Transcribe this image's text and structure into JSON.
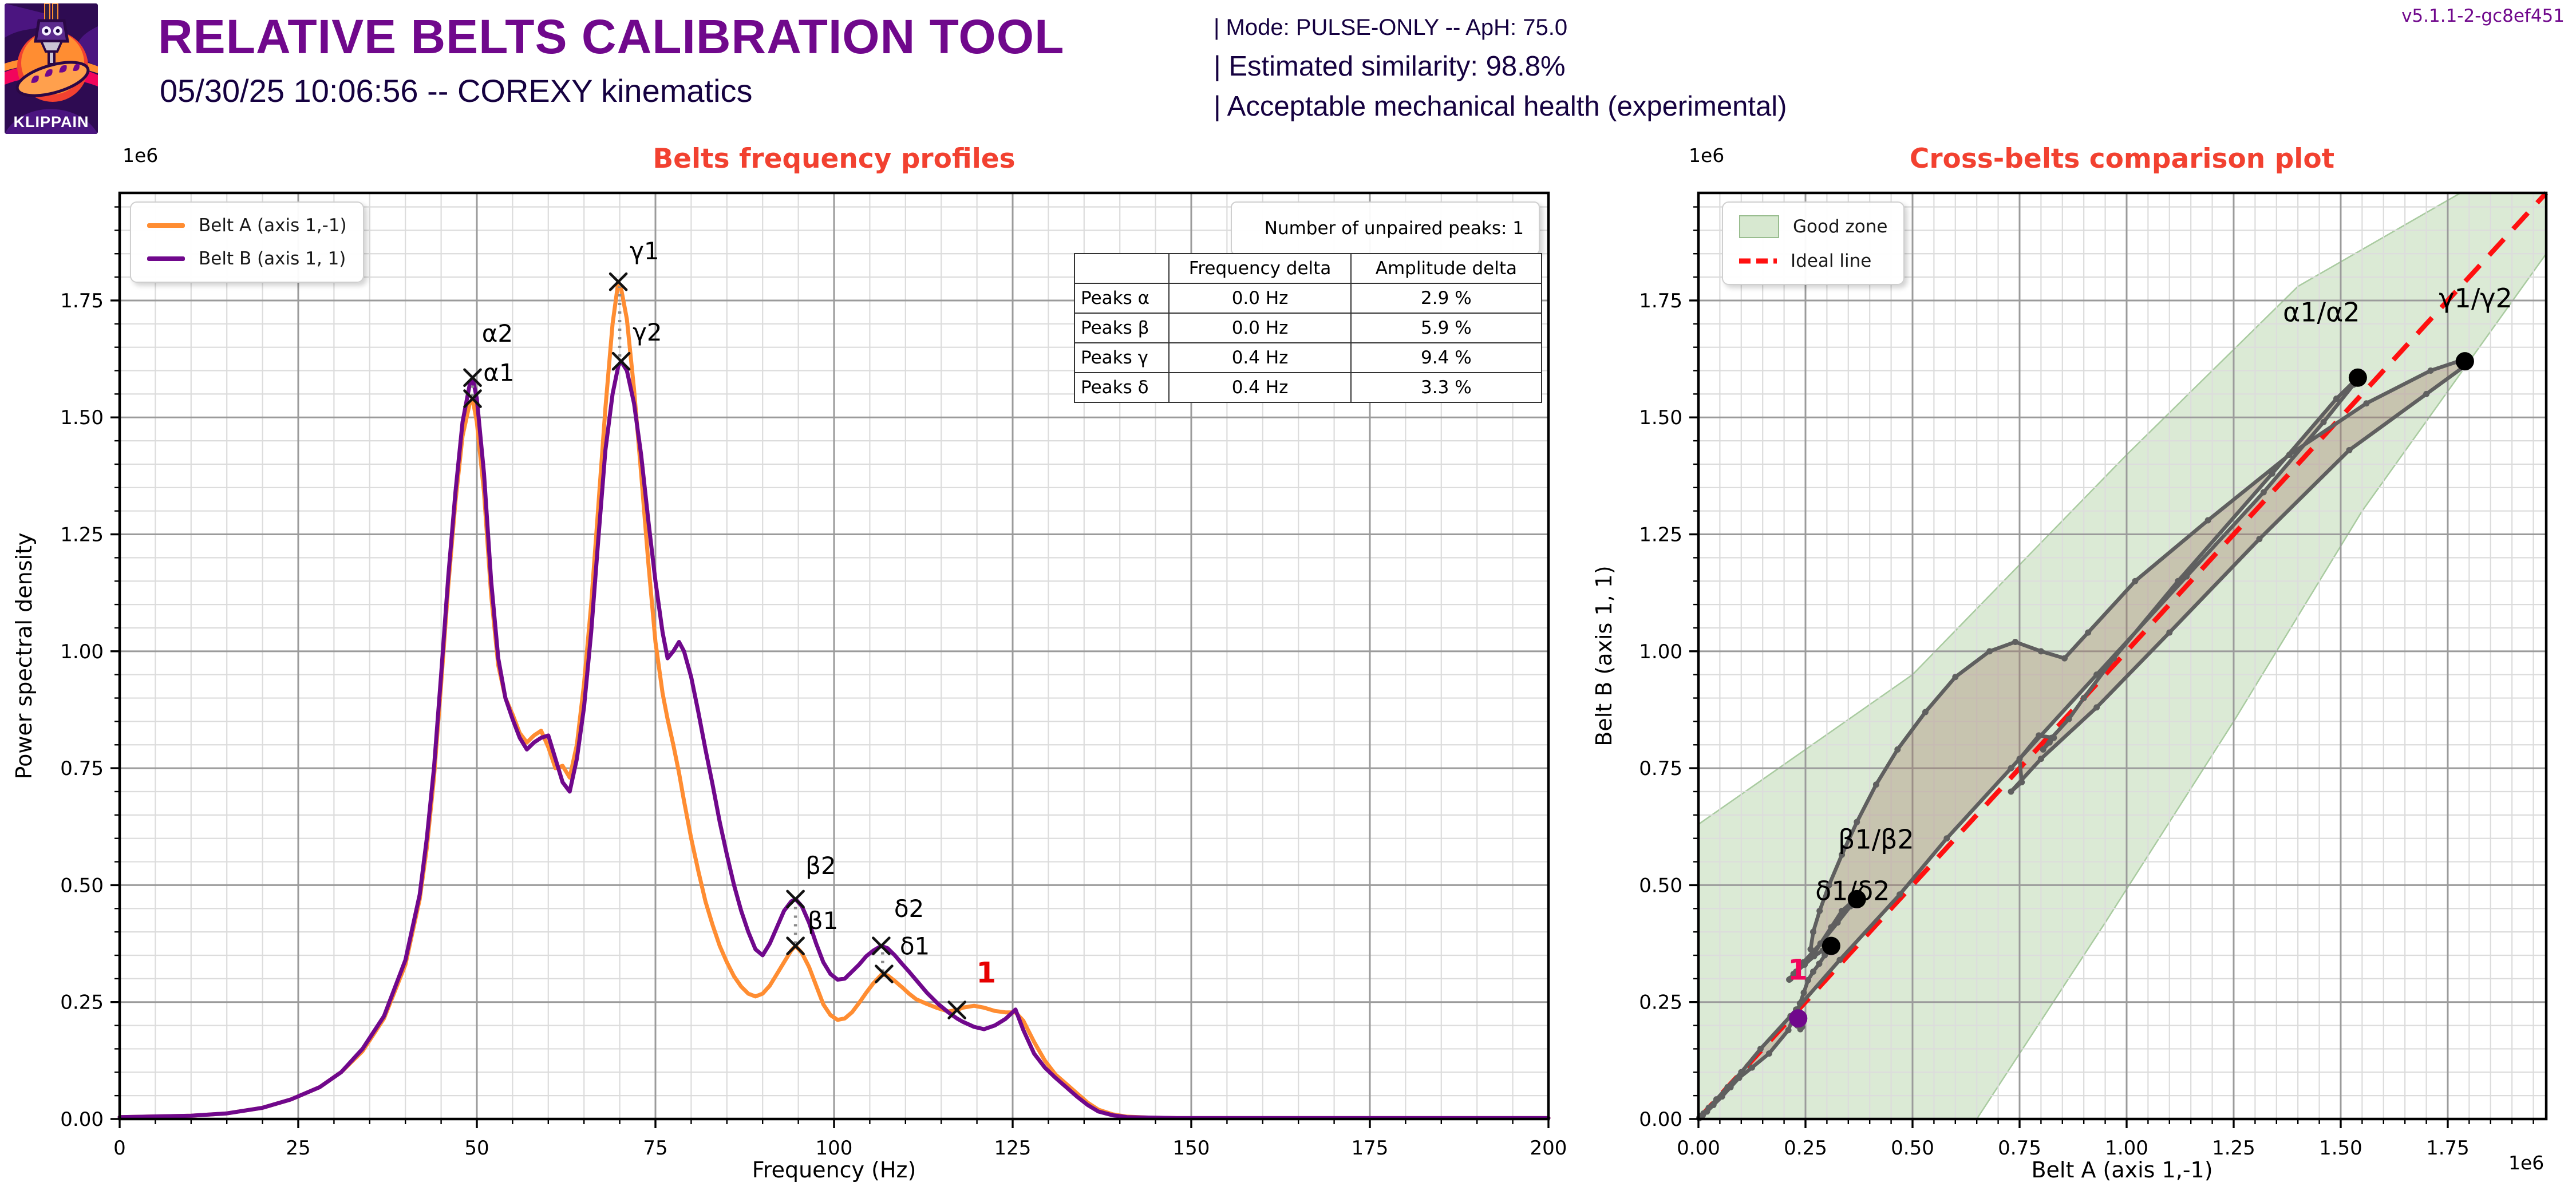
{
  "app": {
    "logo_text": "KLIPPAIN",
    "title": "RELATIVE BELTS CALIBRATION TOOL",
    "subtitle": "05/30/25 10:06:56 -- COREXY kinematics",
    "info_lines": [
      "| Mode: PULSE-ONLY -- ApH: 75.0",
      "| Estimated similarity: 98.8%",
      "| Acceptable mechanical health (experimental)"
    ],
    "version": "v5.1.1-2-gc8ef451"
  },
  "colors": {
    "title_purple": "#70088C",
    "dark_purple": "#150140",
    "chart_title_red": "#F24130",
    "belt_a_orange": "#FF8D32",
    "belt_b_purple": "#70088C",
    "unpaired_red": "#E60000",
    "unpaired_pink": "#F2055C",
    "cross_curve_gray": "#5F5F5F",
    "good_zone_green": "#D7E8D0",
    "ideal_line_red": "#FF1010",
    "grid_major": "#9B9B9B",
    "grid_minor": "#DCDCDC"
  },
  "chart_data": [
    {
      "id": "psd",
      "type": "line",
      "title": "Belts frequency profiles",
      "xlabel": "Frequency (Hz)",
      "ylabel": "Power spectral density",
      "scale_label": "1e6",
      "xlim": [
        0,
        200
      ],
      "ylim_1e6": [
        0,
        1.98
      ],
      "xticks": [
        0,
        25,
        50,
        75,
        100,
        125,
        150,
        175,
        200
      ],
      "yticks": [
        "0.00",
        "0.25",
        "0.50",
        "0.75",
        "1.00",
        "1.25",
        "1.50",
        "1.75"
      ],
      "x_minor_step": 5,
      "y_minor_step_1e6": 0.05,
      "grid": "both",
      "legend_position": "upper-left",
      "legend": [
        {
          "label": "Belt A (axis 1,-1)",
          "color": "#FF8D32"
        },
        {
          "label": "Belt B (axis 1, 1)",
          "color": "#70088C"
        }
      ],
      "unpaired_box_label": "Number of unpaired peaks: 1",
      "table": {
        "headers": [
          "",
          "Frequency delta",
          "Amplitude delta"
        ],
        "rows": [
          [
            "Peaks α",
            "0.0 Hz",
            "2.9 %"
          ],
          [
            "Peaks β",
            "0.0 Hz",
            "5.9 %"
          ],
          [
            "Peaks γ",
            "0.4 Hz",
            "9.4 %"
          ],
          [
            "Peaks δ",
            "0.4 Hz",
            "3.3 %"
          ]
        ]
      },
      "f": [
        0,
        10,
        15,
        20,
        24,
        28,
        31,
        34,
        37,
        40,
        42,
        43,
        44,
        45,
        46,
        47,
        48,
        49,
        49.4,
        50,
        51,
        52,
        53,
        54,
        55,
        56,
        57,
        58,
        59,
        60,
        61,
        62,
        63,
        64,
        65,
        66,
        67,
        68,
        69,
        69.8,
        70.2,
        71,
        72,
        73,
        74,
        75,
        76,
        76.7,
        77.5,
        78.3,
        79,
        80,
        81,
        82,
        83,
        84,
        85,
        86,
        87,
        88,
        89,
        90,
        91,
        92,
        93,
        94,
        94.6,
        95.5,
        96.5,
        97.5,
        98.5,
        99.5,
        100.5,
        101.5,
        102.5,
        103.5,
        104.5,
        105.5,
        106.6,
        107.5,
        108.5,
        109.5,
        110.5,
        111.5,
        113,
        114.5,
        116,
        117.2,
        118,
        119.6,
        121,
        122.5,
        124,
        125.4,
        126.5,
        128,
        129.5,
        131,
        132.5,
        134,
        135.5,
        137,
        139,
        141,
        144,
        148,
        155,
        165,
        180,
        200
      ],
      "series": [
        {
          "name": "Belt A (axis 1,-1)",
          "color": "#FF8D32",
          "values_1e6": [
            0.004,
            0.007,
            0.012,
            0.024,
            0.042,
            0.068,
            0.1,
            0.145,
            0.215,
            0.33,
            0.47,
            0.58,
            0.73,
            0.93,
            1.14,
            1.32,
            1.46,
            1.53,
            1.54,
            1.49,
            1.34,
            1.12,
            0.97,
            0.9,
            0.865,
            0.825,
            0.805,
            0.82,
            0.83,
            0.795,
            0.75,
            0.755,
            0.73,
            0.8,
            0.93,
            1.1,
            1.31,
            1.52,
            1.7,
            1.79,
            1.775,
            1.71,
            1.56,
            1.38,
            1.19,
            1.02,
            0.91,
            0.855,
            0.8,
            0.74,
            0.68,
            0.6,
            0.53,
            0.465,
            0.415,
            0.37,
            0.335,
            0.305,
            0.283,
            0.268,
            0.262,
            0.268,
            0.285,
            0.31,
            0.335,
            0.36,
            0.37,
            0.355,
            0.325,
            0.285,
            0.245,
            0.222,
            0.212,
            0.215,
            0.228,
            0.248,
            0.27,
            0.29,
            0.308,
            0.307,
            0.295,
            0.282,
            0.268,
            0.256,
            0.246,
            0.237,
            0.23,
            0.233,
            0.238,
            0.242,
            0.238,
            0.231,
            0.228,
            0.228,
            0.21,
            0.165,
            0.125,
            0.095,
            0.075,
            0.055,
            0.035,
            0.02,
            0.01,
            0.005,
            0.003,
            0.002,
            0.002,
            0.002,
            0.002,
            0.002
          ]
        },
        {
          "name": "Belt B (axis 1, 1)",
          "color": "#70088C",
          "values_1e6": [
            0.004,
            0.007,
            0.012,
            0.024,
            0.042,
            0.068,
            0.1,
            0.15,
            0.22,
            0.34,
            0.48,
            0.6,
            0.75,
            0.95,
            1.16,
            1.34,
            1.49,
            1.57,
            1.585,
            1.54,
            1.38,
            1.15,
            0.985,
            0.9,
            0.855,
            0.815,
            0.79,
            0.805,
            0.815,
            0.82,
            0.77,
            0.72,
            0.7,
            0.77,
            0.88,
            1.04,
            1.24,
            1.43,
            1.55,
            1.61,
            1.62,
            1.6,
            1.53,
            1.42,
            1.28,
            1.15,
            1.04,
            0.985,
            1.0,
            1.02,
            1.0,
            0.945,
            0.87,
            0.79,
            0.715,
            0.635,
            0.565,
            0.5,
            0.445,
            0.4,
            0.363,
            0.35,
            0.375,
            0.41,
            0.445,
            0.465,
            0.47,
            0.455,
            0.42,
            0.375,
            0.335,
            0.31,
            0.298,
            0.3,
            0.315,
            0.33,
            0.348,
            0.36,
            0.37,
            0.365,
            0.35,
            0.332,
            0.315,
            0.297,
            0.27,
            0.247,
            0.228,
            0.215,
            0.208,
            0.197,
            0.192,
            0.2,
            0.214,
            0.234,
            0.19,
            0.14,
            0.11,
            0.088,
            0.068,
            0.048,
            0.03,
            0.016,
            0.008,
            0.004,
            0.003,
            0.002,
            0.002,
            0.002,
            0.002,
            0.002
          ]
        }
      ],
      "peak_markers": [
        {
          "label": "α1",
          "f": 49.4,
          "v": 1.54,
          "lf": 50.9,
          "lv": 1.578
        },
        {
          "label": "α2",
          "f": 49.4,
          "v": 1.585,
          "lf": 50.7,
          "lv": 1.662
        },
        {
          "label": "γ1",
          "f": 69.8,
          "v": 1.79,
          "lf": 71.4,
          "lv": 1.838
        },
        {
          "label": "γ2",
          "f": 70.2,
          "v": 1.62,
          "lf": 71.8,
          "lv": 1.664
        },
        {
          "label": "β1",
          "f": 94.6,
          "v": 0.37,
          "lf": 96.3,
          "lv": 0.406
        },
        {
          "label": "β2",
          "f": 94.6,
          "v": 0.47,
          "lf": 96.0,
          "lv": 0.524
        },
        {
          "label": "δ1",
          "f": 107.0,
          "v": 0.31,
          "lf": 109.2,
          "lv": 0.352
        },
        {
          "label": "δ2",
          "f": 106.6,
          "v": 0.37,
          "lf": 108.4,
          "lv": 0.432
        }
      ],
      "peak_connectors": [
        {
          "f": 49.4,
          "v1": 1.545,
          "v2": 1.58
        },
        {
          "f": 70.0,
          "v1": 1.63,
          "v2": 1.78
        },
        {
          "f": 94.6,
          "v1": 0.375,
          "v2": 0.465
        },
        {
          "f": 106.8,
          "v1": 0.315,
          "v2": 0.365
        }
      ],
      "unpaired_peak": {
        "label": "1",
        "f": 117.2,
        "v": 0.233,
        "lf": 121.3,
        "lv": 0.292,
        "color": "#E60000"
      }
    },
    {
      "id": "cross",
      "type": "scatter",
      "title": "Cross-belts comparison plot",
      "xlabel": "Belt A (axis 1,-1)",
      "ylabel": "Belt B (axis 1, 1)",
      "scale_label": "1e6",
      "xlim_1e6": [
        0,
        1.98
      ],
      "ylim_1e6": [
        0,
        1.98
      ],
      "xticks": [
        "0.00",
        "0.25",
        "0.50",
        "0.75",
        "1.00",
        "1.25",
        "1.50",
        "1.75"
      ],
      "yticks": [
        "0.00",
        "0.25",
        "0.50",
        "0.75",
        "1.00",
        "1.25",
        "1.50",
        "1.75"
      ],
      "minor_step_1e6": 0.05,
      "grid": "both",
      "legend_position": "upper-left",
      "legend": [
        {
          "label": "Good zone",
          "type": "patch",
          "color": "#D7E8D0"
        },
        {
          "label": "Ideal line",
          "type": "dashed",
          "color": "#FF1010"
        }
      ],
      "good_zone_polygon_1e6": [
        [
          0,
          0
        ],
        [
          0,
          0.63
        ],
        [
          0.5,
          0.95
        ],
        [
          1.0,
          1.42
        ],
        [
          1.4,
          1.78
        ],
        [
          1.78,
          1.98
        ],
        [
          1.98,
          1.98
        ],
        [
          1.98,
          1.85
        ],
        [
          1.55,
          1.3
        ],
        [
          1.25,
          0.85
        ],
        [
          0.95,
          0.42
        ],
        [
          0.65,
          0
        ]
      ],
      "ideal_line_1e6": [
        [
          0,
          0
        ],
        [
          1.98,
          1.98
        ]
      ],
      "paired_points": [
        {
          "label": "α1/α2",
          "x": 1.54,
          "y": 1.585,
          "lx": 1.455,
          "ly": 1.705
        },
        {
          "label": "γ1/γ2",
          "x": 1.79,
          "y": 1.62,
          "lx": 1.815,
          "ly": 1.735
        },
        {
          "label": "β1/β2",
          "x": 0.37,
          "y": 0.47,
          "lx": 0.415,
          "ly": 0.578
        },
        {
          "label": "δ1/δ2",
          "x": 0.31,
          "y": 0.37,
          "lx": 0.36,
          "ly": 0.468
        }
      ],
      "unpaired_point": {
        "label": "1",
        "x": 0.233,
        "y": 0.215,
        "lx": 0.232,
        "ly": 0.298,
        "color": "#70088C",
        "label_color": "#F2055C"
      }
    }
  ]
}
